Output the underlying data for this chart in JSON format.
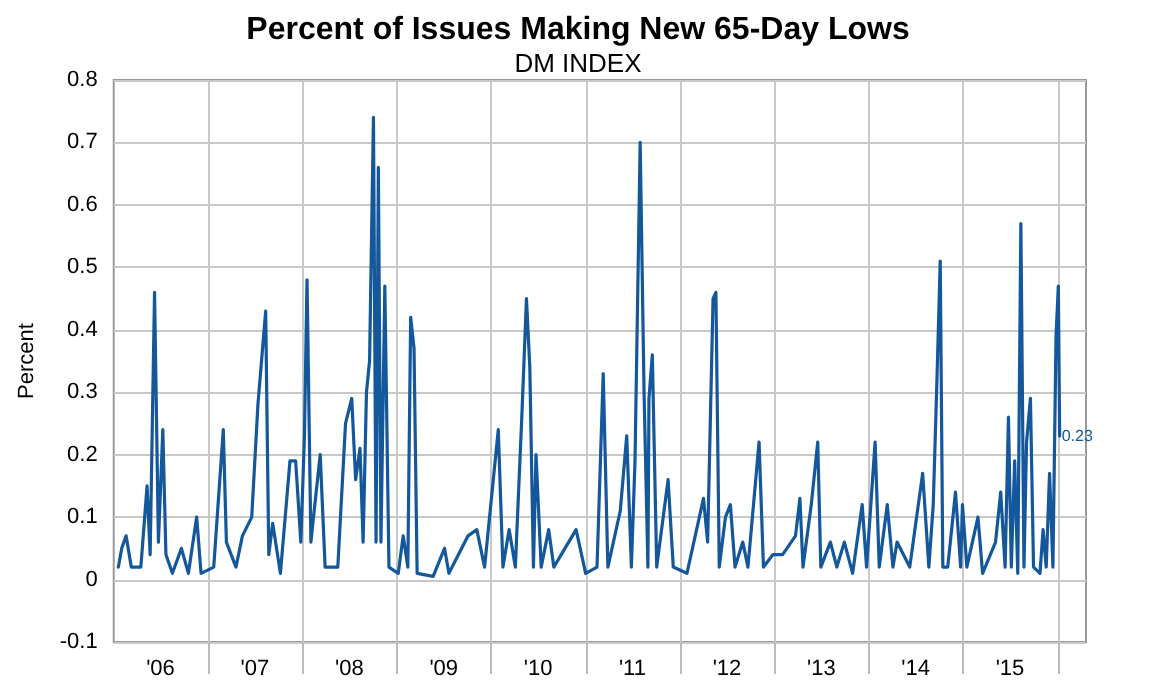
{
  "chart_data": {
    "type": "line",
    "title": "Percent of Issues Making New 65-Day Lows",
    "subtitle": "DM INDEX",
    "ylabel": "Percent",
    "x": [
      "2006-01-19",
      "2006-02-01",
      "2006-02-18",
      "2006-03-10",
      "2006-04-16",
      "2006-05-10",
      "2006-05-22",
      "2006-06-08",
      "2006-06-23",
      "2006-07-10",
      "2006-07-22",
      "2006-08-16",
      "2006-09-20",
      "2006-10-17",
      "2006-11-18",
      "2006-12-05",
      "2007-01-23",
      "2007-03-01",
      "2007-03-13",
      "2007-04-19",
      "2007-05-14",
      "2007-06-19",
      "2007-07-13",
      "2007-08-12",
      "2007-08-24",
      "2007-09-08",
      "2007-10-08",
      "2007-11-14",
      "2007-12-06",
      "2007-12-26",
      "2008-01-09",
      "2008-01-19",
      "2008-02-03",
      "2008-02-13",
      "2008-03-10",
      "2008-03-29",
      "2008-05-17",
      "2008-06-16",
      "2008-07-10",
      "2008-07-25",
      "2008-08-11",
      "2008-08-23",
      "2008-09-05",
      "2008-09-17",
      "2008-10-02",
      "2008-10-12",
      "2008-10-21",
      "2008-10-31",
      "2008-11-15",
      "2008-12-01",
      "2009-01-06",
      "2009-01-25",
      "2009-02-12",
      "2009-02-23",
      "2009-03-08",
      "2009-03-20",
      "2009-05-21",
      "2009-07-04",
      "2009-07-21",
      "2009-10-03",
      "2009-11-06",
      "2009-12-06",
      "2010-01-28",
      "2010-02-15",
      "2010-03-11",
      "2010-04-04",
      "2010-04-30",
      "2010-05-17",
      "2010-05-30",
      "2010-06-13",
      "2010-06-23",
      "2010-07-13",
      "2010-08-11",
      "2010-08-31",
      "2010-11-25",
      "2011-01-01",
      "2011-02-14",
      "2011-03-10",
      "2011-03-28",
      "2011-05-15",
      "2011-06-09",
      "2011-06-27",
      "2011-07-11",
      "2011-07-31",
      "2011-08-15",
      "2011-08-30",
      "2011-09-03",
      "2011-09-16",
      "2011-10-03",
      "2011-11-16",
      "2011-12-06",
      "2012-01-28",
      "2012-04-01",
      "2012-04-17",
      "2012-05-08",
      "2012-05-19",
      "2012-06-01",
      "2012-06-25",
      "2012-07-14",
      "2012-08-01",
      "2012-08-31",
      "2012-09-20",
      "2012-11-02",
      "2012-11-19",
      "2012-12-26",
      "2013-02-01",
      "2013-03-23",
      "2013-04-09",
      "2013-04-21",
      "2013-05-23",
      "2013-06-17",
      "2013-06-29",
      "2013-08-05",
      "2013-08-30",
      "2013-09-28",
      "2013-10-30",
      "2013-12-06",
      "2013-12-23",
      "2014-01-25",
      "2014-02-10",
      "2014-03-13",
      "2014-04-04",
      "2014-04-20",
      "2014-06-08",
      "2014-07-28",
      "2014-08-21",
      "2014-09-07",
      "2014-09-22",
      "2014-10-04",
      "2014-10-14",
      "2014-11-02",
      "2014-12-02",
      "2014-12-22",
      "2014-12-29",
      "2015-01-15",
      "2015-02-27",
      "2015-03-17",
      "2015-05-06",
      "2015-05-26",
      "2015-06-12",
      "2015-06-25",
      "2015-07-06",
      "2015-07-19",
      "2015-07-31",
      "2015-08-12",
      "2015-08-24",
      "2015-09-03",
      "2015-09-18",
      "2015-09-30",
      "2015-10-25",
      "2015-11-06",
      "2015-11-18",
      "2015-12-01",
      "2015-12-14",
      "2015-12-26",
      "2016-01-04",
      "2016-01-09"
    ],
    "values": [
      0.02,
      0.05,
      0.07,
      0.02,
      0.02,
      0.15,
      0.04,
      0.46,
      0.06,
      0.24,
      0.04,
      0.01,
      0.05,
      0.01,
      0.1,
      0.01,
      0.02,
      0.24,
      0.06,
      0.02,
      0.07,
      0.1,
      0.28,
      0.43,
      0.04,
      0.09,
      0.01,
      0.19,
      0.19,
      0.06,
      0.23,
      0.48,
      0.06,
      0.1,
      0.2,
      0.02,
      0.02,
      0.25,
      0.29,
      0.16,
      0.21,
      0.06,
      0.3,
      0.35,
      0.74,
      0.06,
      0.66,
      0.06,
      0.47,
      0.02,
      0.01,
      0.07,
      0.02,
      0.42,
      0.37,
      0.01,
      0.005,
      0.05,
      0.01,
      0.07,
      0.08,
      0.02,
      0.24,
      0.02,
      0.08,
      0.02,
      0.27,
      0.45,
      0.34,
      0.02,
      0.2,
      0.02,
      0.08,
      0.02,
      0.08,
      0.01,
      0.02,
      0.33,
      0.02,
      0.11,
      0.23,
      0.02,
      0.19,
      0.7,
      0.3,
      0.02,
      0.29,
      0.36,
      0.02,
      0.16,
      0.02,
      0.01,
      0.13,
      0.06,
      0.45,
      0.46,
      0.02,
      0.1,
      0.12,
      0.02,
      0.06,
      0.02,
      0.22,
      0.02,
      0.04,
      0.04,
      0.07,
      0.13,
      0.02,
      0.12,
      0.22,
      0.02,
      0.06,
      0.02,
      0.06,
      0.01,
      0.12,
      0.02,
      0.22,
      0.02,
      0.12,
      0.02,
      0.06,
      0.02,
      0.17,
      0.02,
      0.12,
      0.33,
      0.51,
      0.02,
      0.02,
      0.14,
      0.02,
      0.12,
      0.02,
      0.1,
      0.01,
      0.06,
      0.14,
      0.02,
      0.26,
      0.02,
      0.19,
      0.01,
      0.57,
      0.02,
      0.22,
      0.29,
      0.02,
      0.01,
      0.08,
      0.02,
      0.17,
      0.02,
      0.39,
      0.47,
      0.23
    ],
    "value_labels": [
      null,
      null,
      null,
      null,
      null,
      null,
      null,
      null,
      null,
      null,
      null,
      null,
      null,
      null,
      null,
      null,
      null,
      null,
      null,
      null,
      null,
      null,
      null,
      null,
      null,
      null,
      null,
      null,
      null,
      null,
      null,
      null,
      null,
      null,
      null,
      null,
      null,
      null,
      null,
      null,
      null,
      null,
      null,
      null,
      null,
      null,
      null,
      null,
      null,
      null,
      null,
      null,
      null,
      null,
      null,
      null,
      null,
      null,
      null,
      null,
      null,
      null,
      null,
      null,
      null,
      null,
      null,
      null,
      null,
      null,
      null,
      null,
      null,
      null,
      null,
      null,
      null,
      null,
      null,
      null,
      null,
      null,
      null,
      null,
      null,
      null,
      null,
      null,
      null,
      null,
      null,
      null,
      null,
      null,
      null,
      null,
      null,
      null,
      null,
      null,
      null,
      null,
      null,
      null,
      null,
      null,
      null,
      null,
      null,
      null,
      null,
      null,
      null,
      null,
      null,
      null,
      null,
      null,
      null,
      null,
      null,
      null,
      null,
      null,
      null,
      null,
      null,
      null,
      null,
      null,
      null,
      null,
      null,
      null,
      null,
      null,
      null,
      null,
      null,
      null,
      null,
      null,
      null,
      null,
      null,
      null,
      null,
      null,
      null,
      null,
      null,
      null,
      null,
      null,
      null,
      null,
      "0.23"
    ],
    "color": "#14579b",
    "line_style": "solid",
    "grid": true,
    "xlim": [
      "2006-01-01",
      "2016-04-20"
    ],
    "xticks": [
      {
        "value": "2006-07-01",
        "label": "'06"
      },
      {
        "value": "2007-01-01",
        "label": null
      },
      {
        "value": "2007-07-01",
        "label": "'07"
      },
      {
        "value": "2008-01-01",
        "label": null
      },
      {
        "value": "2008-07-01",
        "label": "'08"
      },
      {
        "value": "2009-01-01",
        "label": null
      },
      {
        "value": "2009-07-01",
        "label": "'09"
      },
      {
        "value": "2010-01-01",
        "label": null
      },
      {
        "value": "2010-07-01",
        "label": "'10"
      },
      {
        "value": "2011-01-01",
        "label": null
      },
      {
        "value": "2011-07-01",
        "label": "'11"
      },
      {
        "value": "2012-01-01",
        "label": null
      },
      {
        "value": "2012-07-01",
        "label": "'12"
      },
      {
        "value": "2013-01-01",
        "label": null
      },
      {
        "value": "2013-07-01",
        "label": "'13"
      },
      {
        "value": "2014-01-01",
        "label": null
      },
      {
        "value": "2014-07-01",
        "label": "'14"
      },
      {
        "value": "2015-01-01",
        "label": null
      },
      {
        "value": "2015-07-01",
        "label": "'15"
      },
      {
        "value": "2016-01-01",
        "label": null
      }
    ],
    "ylim": [
      -0.1,
      0.8
    ],
    "yticks": [
      -0.1,
      0,
      0.1,
      0.2,
      0.3,
      0.4,
      0.5,
      0.6,
      0.7,
      0.8
    ]
  }
}
